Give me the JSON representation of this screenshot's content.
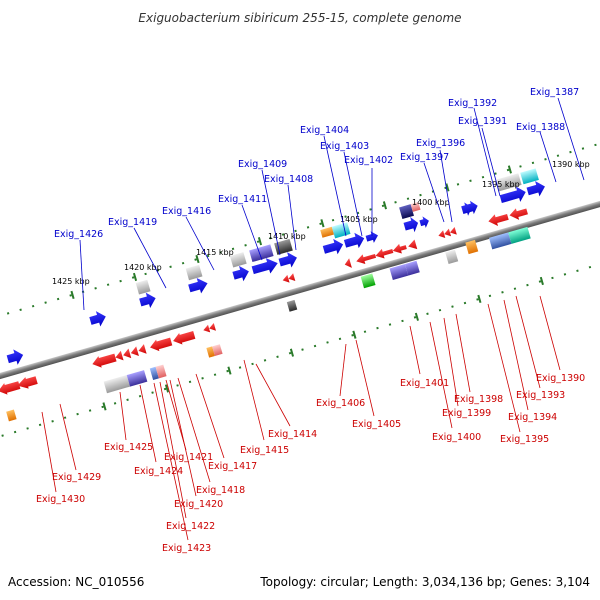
{
  "title": "Exiguobacterium sibiricum 255-15, complete genome",
  "footer": {
    "accession": "Accession: NC_010556",
    "summary": "Topology: circular; Length: 3,034,136 bp; Genes: 3,104"
  },
  "colors": {
    "backbone": "#808080",
    "forward_label": "#0000cc",
    "reverse_label": "#cc0000",
    "tick": "#2a7a2a"
  },
  "kbp_marks": [
    "1425 kbp",
    "1420 kbp",
    "1415 kbp",
    "1410 kbp",
    "1405 kbp",
    "1400 kbp",
    "1395 kbp",
    "1390 kbp"
  ],
  "forward_genes": [
    "Exig_1426",
    "Exig_1419",
    "Exig_1416",
    "Exig_1411",
    "Exig_1409",
    "Exig_1408",
    "Exig_1404",
    "Exig_1403",
    "Exig_1402",
    "Exig_1397",
    "Exig_1396",
    "Exig_1392",
    "Exig_1391",
    "Exig_1388",
    "Exig_1387"
  ],
  "reverse_genes": [
    "Exig_1430",
    "Exig_1429",
    "Exig_1425",
    "Exig_1424",
    "Exig_1423",
    "Exig_1422",
    "Exig_1421",
    "Exig_1420",
    "Exig_1418",
    "Exig_1417",
    "Exig_1415",
    "Exig_1414",
    "Exig_1406",
    "Exig_1405",
    "Exig_1401",
    "Exig_1400",
    "Exig_1399",
    "Exig_1398",
    "Exig_1395",
    "Exig_1394",
    "Exig_1393",
    "Exig_1390"
  ]
}
